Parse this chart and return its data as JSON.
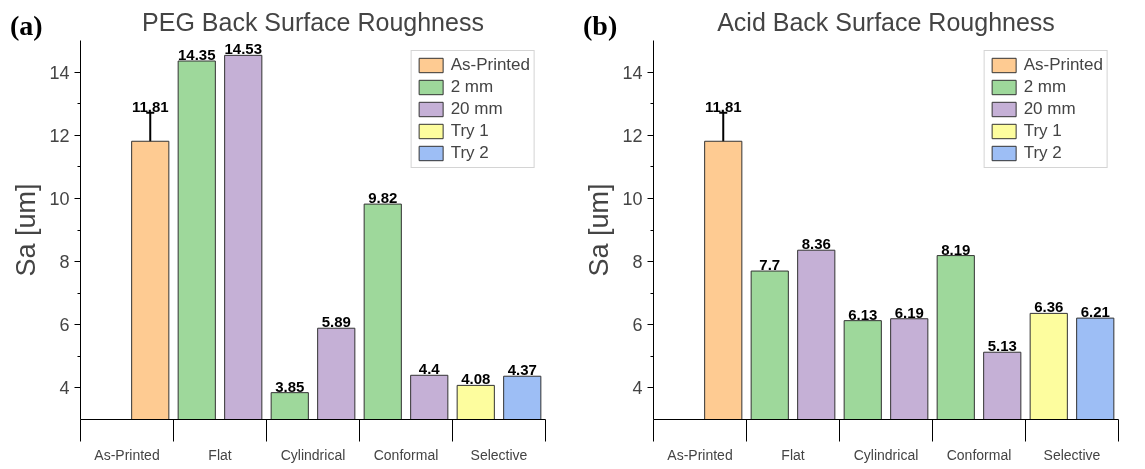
{
  "chart_data": [
    {
      "type": "bar",
      "title": "PEG Back Surface Roughness",
      "annotations": [
        "(a)"
      ],
      "ylabel": "Sa [um]",
      "categories": [
        "As-Printed",
        "Flat",
        "Cylindrical",
        "Conformal",
        "Selective"
      ],
      "series": [
        {
          "name": "As-Printed",
          "color": "#fecb92",
          "values": [
            11.81,
            null,
            null,
            null,
            null
          ],
          "errors": [
            0.9,
            null,
            null,
            null,
            null
          ]
        },
        {
          "name": "2 mm",
          "color": "#9ed89b",
          "values": [
            null,
            14.35,
            3.85,
            9.82,
            null
          ]
        },
        {
          "name": "20 mm",
          "color": "#c5b0d6",
          "values": [
            null,
            14.53,
            5.89,
            4.4,
            null
          ]
        },
        {
          "name": "Try 1",
          "color": "#fdfd9e",
          "values": [
            null,
            null,
            null,
            null,
            4.08
          ]
        },
        {
          "name": "Try 2",
          "color": "#9dbef5",
          "values": [
            null,
            null,
            null,
            null,
            4.37
          ]
        }
      ],
      "ylim": [
        3,
        15
      ],
      "yticks": [
        4,
        {
          "value": 5,
          "label": null
        },
        6,
        {
          "value": 7,
          "label": null
        },
        8,
        {
          "value": 9,
          "label": null
        },
        10,
        {
          "value": 11,
          "label": null
        },
        12,
        {
          "value": 13,
          "label": null
        },
        14
      ],
      "legend": "top right",
      "data_labels": true,
      "grid": false
    },
    {
      "type": "bar",
      "title": "Acid Back Surface Roughness",
      "annotations": [
        "(b)"
      ],
      "ylabel": "Sa [um]",
      "categories": [
        "As-Printed",
        "Flat",
        "Cylindrical",
        "Conformal",
        "Selective"
      ],
      "series": [
        {
          "name": "As-Printed",
          "color": "#fecb92",
          "values": [
            11.81,
            null,
            null,
            null,
            null
          ],
          "errors": [
            0.9,
            null,
            null,
            null,
            null
          ]
        },
        {
          "name": "2 mm",
          "color": "#9ed89b",
          "values": [
            null,
            7.7,
            6.13,
            8.19,
            null
          ]
        },
        {
          "name": "20 mm",
          "color": "#c5b0d6",
          "values": [
            null,
            8.36,
            6.19,
            5.13,
            null
          ]
        },
        {
          "name": "Try 1",
          "color": "#fdfd9e",
          "values": [
            null,
            null,
            null,
            null,
            6.36
          ]
        },
        {
          "name": "Try 2",
          "color": "#9dbef5",
          "values": [
            null,
            null,
            null,
            null,
            6.21
          ]
        }
      ],
      "ylim": [
        3,
        15
      ],
      "yticks": [
        4,
        {
          "value": 5,
          "label": null
        },
        6,
        {
          "value": 7,
          "label": null
        },
        8,
        {
          "value": 9,
          "label": null
        },
        10,
        {
          "value": 11,
          "label": null
        },
        12,
        {
          "value": 13,
          "label": null
        },
        14
      ],
      "legend": "top right",
      "data_labels": true,
      "grid": false
    }
  ]
}
